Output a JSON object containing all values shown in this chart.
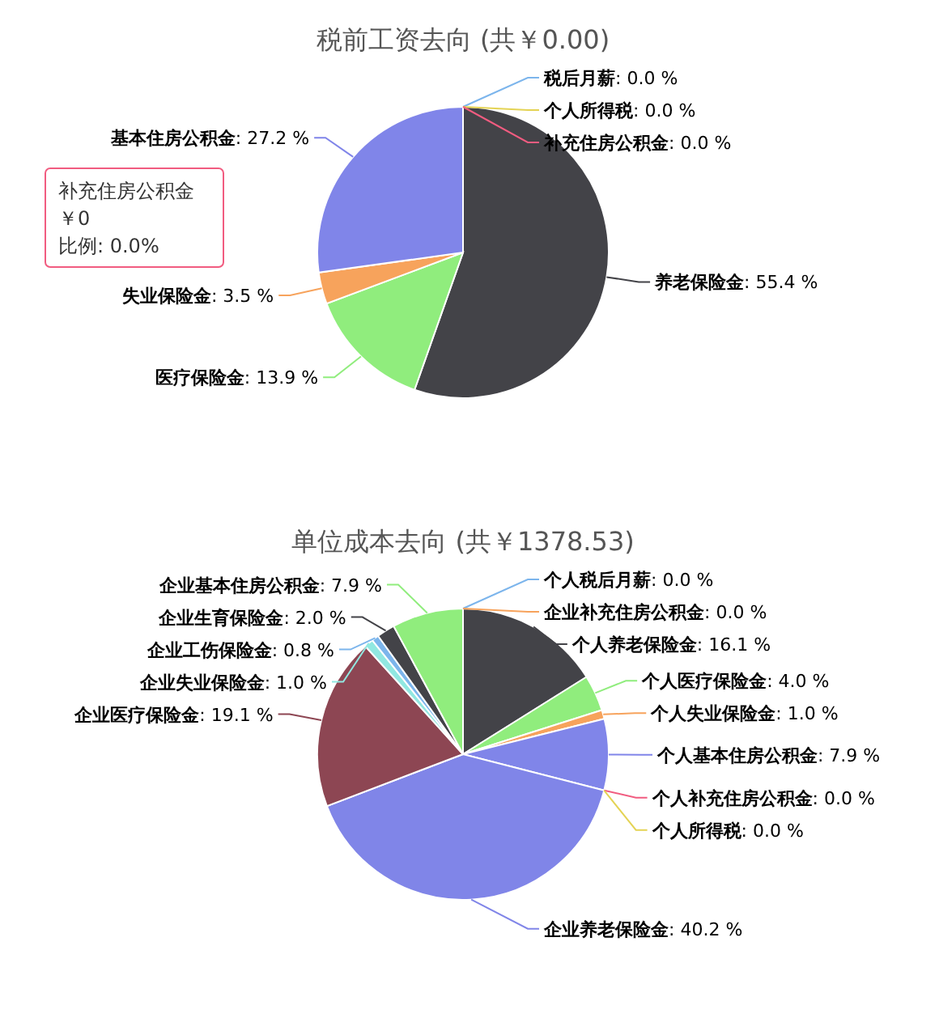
{
  "chart_data": [
    {
      "type": "pie",
      "title": "税前工资去向 (共￥0.00)",
      "categories": [
        "税后月薪",
        "养老保险金",
        "医疗保险金",
        "失业保险金",
        "基本住房公积金",
        "个人所得税",
        "补充住房公积金"
      ],
      "values": [
        0.0,
        55.4,
        13.9,
        3.5,
        27.2,
        0.0,
        0.0
      ],
      "colors": [
        "#7cb5ec",
        "#434348",
        "#90ed7d",
        "#f7a35c",
        "#8085e9",
        "#e4d354",
        "#f15c80"
      ],
      "value_labels": [
        ": 0.0 %",
        ": 55.4 %",
        ": 13.9 %",
        ": 3.5 %",
        ": 27.2 %",
        ": 0.0 %",
        ": 0.0 %"
      ],
      "annotations": [
        "补充住房公积金",
        "￥0",
        "比例: 0.0%"
      ]
    },
    {
      "type": "pie",
      "title": "单位成本去向 (共￥1378.53)",
      "categories": [
        "个人税后月薪",
        "个人养老保险金",
        "个人医疗保险金",
        "个人失业保险金",
        "个人基本住房公积金",
        "个人补充住房公积金",
        "个人所得税",
        "企业养老保险金",
        "企业医疗保险金",
        "企业失业保险金",
        "企业工伤保险金",
        "企业生育保险金",
        "企业基本住房公积金",
        "企业补充住房公积金"
      ],
      "values": [
        0.0,
        16.1,
        4.0,
        1.0,
        7.9,
        0.0,
        0.0,
        40.2,
        19.1,
        1.0,
        0.8,
        2.0,
        7.9,
        0.0
      ],
      "colors": [
        "#7cb5ec",
        "#434348",
        "#90ed7d",
        "#f7a35c",
        "#8085e9",
        "#f15c80",
        "#e4d354",
        "#8085e8",
        "#8d4653",
        "#91e8e1",
        "#7cb5ec",
        "#434348",
        "#90ed7d",
        "#f7a35c"
      ],
      "value_labels": [
        ": 0.0 %",
        ": 16.1 %",
        ": 4.0 %",
        ": 1.0 %",
        ": 7.9 %",
        ": 0.0 %",
        ": 0.0 %",
        ": 40.2 %",
        ": 19.1 %",
        ": 1.0 %",
        ": 0.8 %",
        ": 2.0 %",
        ": 7.9 %",
        ": 0.0 %"
      ]
    }
  ]
}
